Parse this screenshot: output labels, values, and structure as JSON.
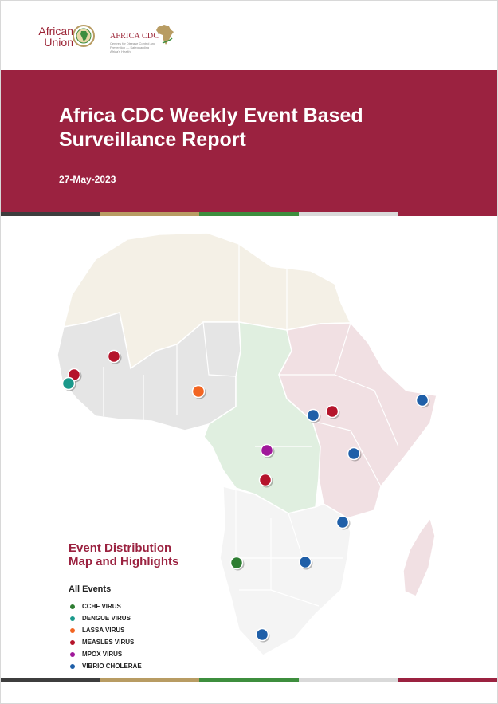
{
  "header": {
    "au_logo_text": "African Union",
    "au_logo_line1": "African",
    "au_logo_line2": "Union",
    "cdc_logo_text": "AFRICA CDC",
    "cdc_logo_tagline": "Centres for Disease Control and Prevention — Safeguarding Africa's Health"
  },
  "report": {
    "title_line1": "Africa CDC Weekly Event Based",
    "title_line2": "Surveillance Report",
    "date": "27-May-2023"
  },
  "stripe_colors": [
    "#3d3d3d",
    "#b89c63",
    "#3e8e3e",
    "#d9d9d9",
    "#9b2240"
  ],
  "colors": {
    "brand": "#9b2240",
    "cchf": "#2e7d32",
    "dengue": "#1b998b",
    "lassa": "#f26522",
    "measles": "#b5142b",
    "mpox": "#a0189a",
    "vibrio": "#1f5fa8"
  },
  "map": {
    "region_colors": {
      "north": "#f4f0e6",
      "west": "#e5e5e5",
      "central": "#e0efe0",
      "east": "#f1e0e3",
      "southern": "#f4f4f4"
    },
    "events": [
      {
        "name": "measles-mali",
        "type": "measles"
      },
      {
        "name": "measles-senegal",
        "type": "measles"
      },
      {
        "name": "dengue-senegal",
        "type": "dengue"
      },
      {
        "name": "lassa-nigeria",
        "type": "lassa"
      },
      {
        "name": "vibrio-south-sudan",
        "type": "vibrio"
      },
      {
        "name": "measles-south-sudan",
        "type": "measles"
      },
      {
        "name": "vibrio-somalia",
        "type": "vibrio"
      },
      {
        "name": "mpox-drc",
        "type": "mpox"
      },
      {
        "name": "vibrio-kenya",
        "type": "vibrio"
      },
      {
        "name": "measles-drc",
        "type": "measles"
      },
      {
        "name": "vibrio-malawi",
        "type": "vibrio"
      },
      {
        "name": "cchf-namibia",
        "type": "cchf"
      },
      {
        "name": "vibrio-zimbabwe",
        "type": "vibrio"
      },
      {
        "name": "vibrio-south-africa",
        "type": "vibrio"
      }
    ]
  },
  "highlights": {
    "title_line1": "Event Distribution",
    "title_line2": "Map and Highlights",
    "events_title": "All Events",
    "legend": [
      {
        "label": "CCHF VIRUS",
        "color": "#2e7d32"
      },
      {
        "label": "DENGUE VIRUS",
        "color": "#1b998b"
      },
      {
        "label": "LASSA VIRUS",
        "color": "#f26522"
      },
      {
        "label": "MEASLES VIRUS",
        "color": "#b5142b"
      },
      {
        "label": "MPOX VIRUS",
        "color": "#a0189a"
      },
      {
        "label": "VIBRIO CHOLERAE",
        "color": "#1f5fa8"
      }
    ]
  }
}
